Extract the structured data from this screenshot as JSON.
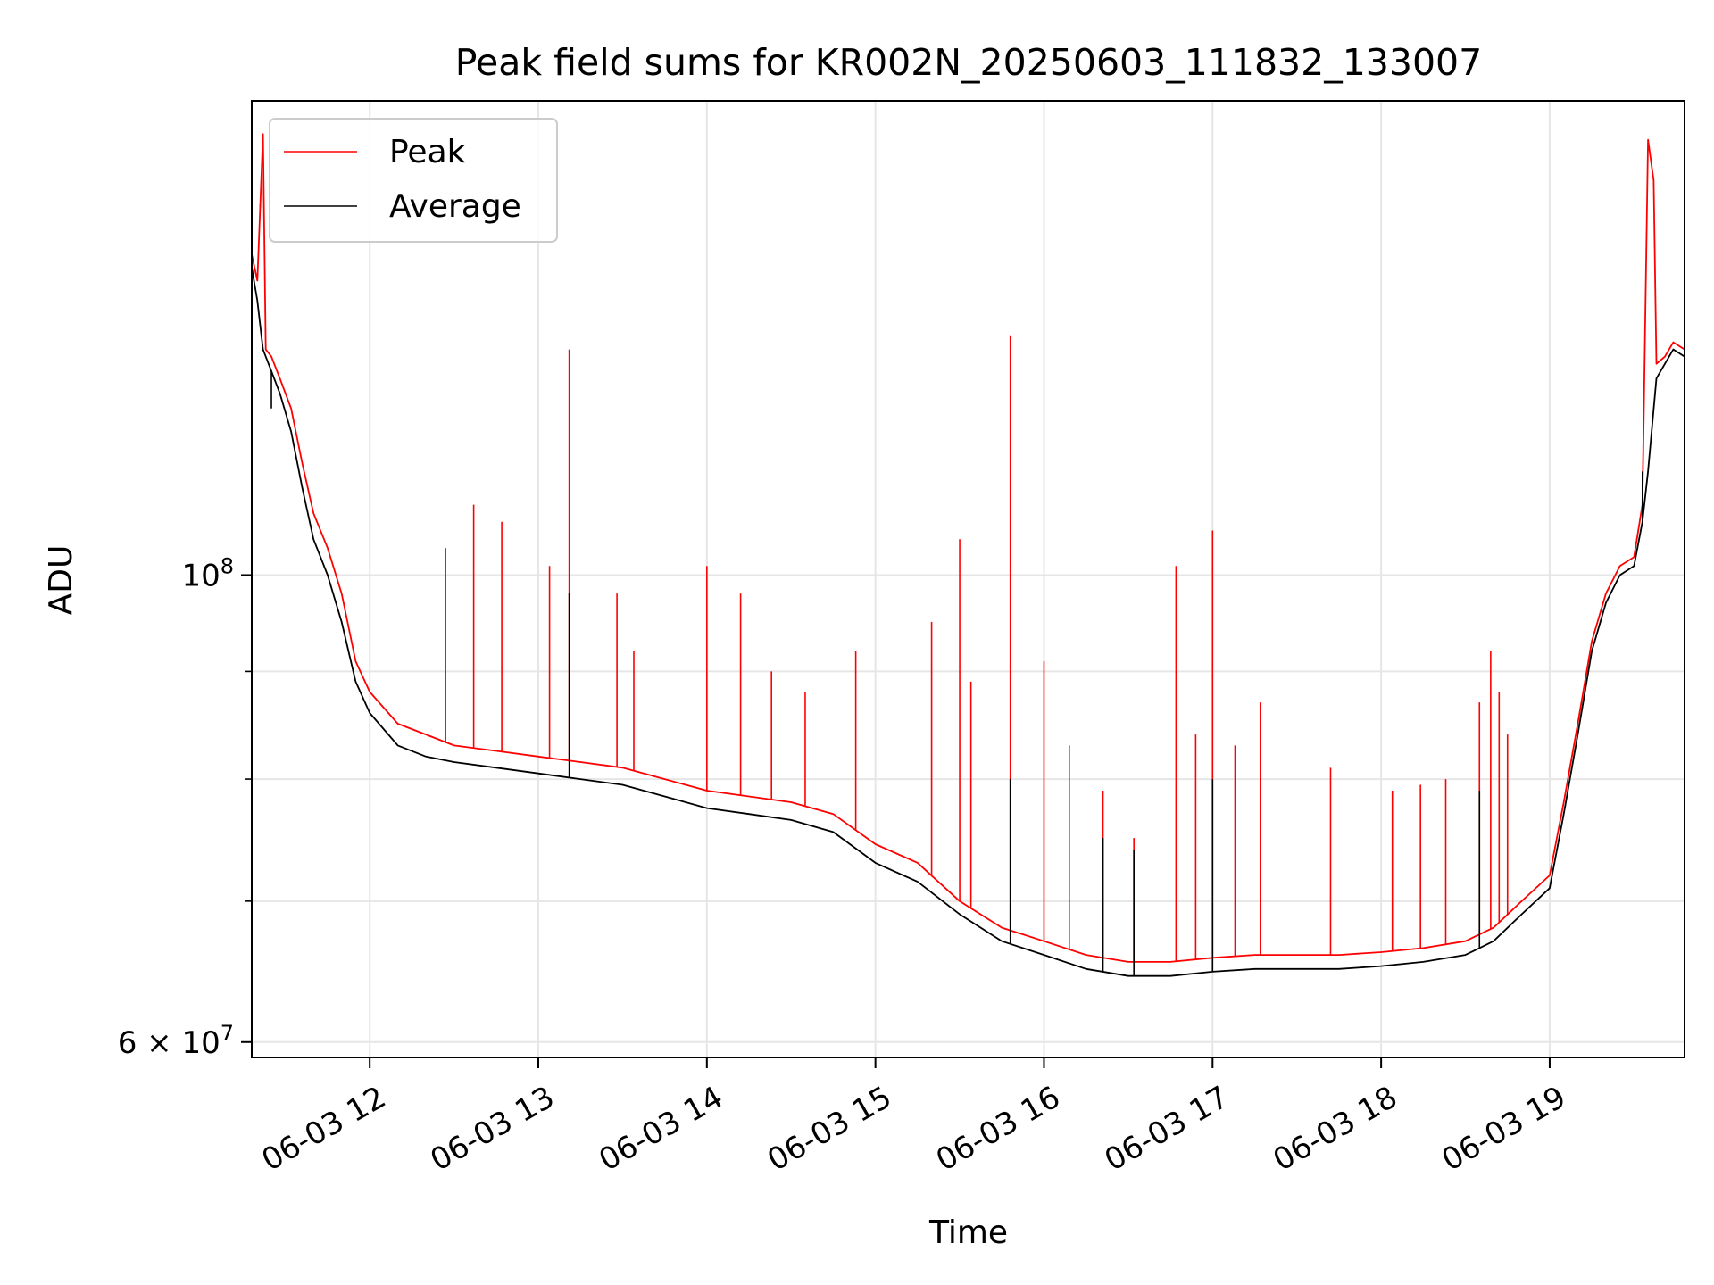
{
  "chart_data": {
    "type": "line",
    "title": "Peak field sums for KR002N_20250603_111832_133007",
    "xlabel": "Time",
    "ylabel": "ADU",
    "y_scale": "log",
    "grid": true,
    "legend_placement": "top-left",
    "x_range": [
      "2025-06-03 11:18",
      "2025-06-03 19:48"
    ],
    "y_range": [
      59000000,
      168000000
    ],
    "x_ticks": [
      {
        "value": "2025-06-03 12:00",
        "label": "06-03 12"
      },
      {
        "value": "2025-06-03 13:00",
        "label": "06-03 13"
      },
      {
        "value": "2025-06-03 14:00",
        "label": "06-03 14"
      },
      {
        "value": "2025-06-03 15:00",
        "label": "06-03 15"
      },
      {
        "value": "2025-06-03 16:00",
        "label": "06-03 16"
      },
      {
        "value": "2025-06-03 17:00",
        "label": "06-03 17"
      },
      {
        "value": "2025-06-03 18:00",
        "label": "06-03 18"
      },
      {
        "value": "2025-06-03 19:00",
        "label": "06-03 19"
      }
    ],
    "y_major_ticks": [
      {
        "value": 60000000,
        "label": "6 × 10^7",
        "mantissa": "6",
        "exponent": "7"
      },
      {
        "value": 100000000,
        "label": "10^8",
        "mantissa": "",
        "exponent": "8"
      }
    ],
    "y_minor_ticks": [
      70000000,
      80000000,
      90000000
    ],
    "series": [
      {
        "name": "Peak",
        "color": "#ff0000",
        "points": [
          [
            "2025-06-03 11:18",
            142000000
          ],
          [
            "2025-06-03 11:20",
            138000000
          ],
          [
            "2025-06-03 11:22",
            162000000
          ],
          [
            "2025-06-03 11:23",
            128000000
          ],
          [
            "2025-06-03 11:25",
            127000000
          ],
          [
            "2025-06-03 11:28",
            124000000
          ],
          [
            "2025-06-03 11:32",
            120000000
          ],
          [
            "2025-06-03 11:36",
            113000000
          ],
          [
            "2025-06-03 11:40",
            107000000
          ],
          [
            "2025-06-03 11:45",
            103000000
          ],
          [
            "2025-06-03 11:50",
            98000000
          ],
          [
            "2025-06-03 11:55",
            91000000
          ],
          [
            "2025-06-03 12:00",
            88000000
          ],
          [
            "2025-06-03 12:10",
            85000000
          ],
          [
            "2025-06-03 12:20",
            84000000
          ],
          [
            "2025-06-03 12:30",
            83000000
          ],
          [
            "2025-06-03 12:45",
            82500000
          ],
          [
            "2025-06-03 13:00",
            82000000
          ],
          [
            "2025-06-03 13:15",
            81500000
          ],
          [
            "2025-06-03 13:30",
            81000000
          ],
          [
            "2025-06-03 13:45",
            80000000
          ],
          [
            "2025-06-03 14:00",
            79000000
          ],
          [
            "2025-06-03 14:15",
            78500000
          ],
          [
            "2025-06-03 14:30",
            78000000
          ],
          [
            "2025-06-03 14:45",
            77000000
          ],
          [
            "2025-06-03 15:00",
            74500000
          ],
          [
            "2025-06-03 15:15",
            73000000
          ],
          [
            "2025-06-03 15:30",
            70000000
          ],
          [
            "2025-06-03 15:45",
            68000000
          ],
          [
            "2025-06-03 16:00",
            67000000
          ],
          [
            "2025-06-03 16:15",
            66000000
          ],
          [
            "2025-06-03 16:30",
            65500000
          ],
          [
            "2025-06-03 16:45",
            65500000
          ],
          [
            "2025-06-03 17:00",
            65800000
          ],
          [
            "2025-06-03 17:15",
            66000000
          ],
          [
            "2025-06-03 17:30",
            66000000
          ],
          [
            "2025-06-03 17:45",
            66000000
          ],
          [
            "2025-06-03 18:00",
            66200000
          ],
          [
            "2025-06-03 18:15",
            66500000
          ],
          [
            "2025-06-03 18:30",
            67000000
          ],
          [
            "2025-06-03 18:40",
            68000000
          ],
          [
            "2025-06-03 18:50",
            70000000
          ],
          [
            "2025-06-03 19:00",
            72000000
          ],
          [
            "2025-06-03 19:05",
            78000000
          ],
          [
            "2025-06-03 19:10",
            85000000
          ],
          [
            "2025-06-03 19:15",
            93000000
          ],
          [
            "2025-06-03 19:20",
            98000000
          ],
          [
            "2025-06-03 19:25",
            101000000
          ],
          [
            "2025-06-03 19:30",
            102000000
          ],
          [
            "2025-06-03 19:33",
            108000000
          ],
          [
            "2025-06-03 19:35",
            161000000
          ],
          [
            "2025-06-03 19:37",
            154000000
          ],
          [
            "2025-06-03 19:38",
            126000000
          ],
          [
            "2025-06-03 19:41",
            127000000
          ],
          [
            "2025-06-03 19:44",
            129000000
          ],
          [
            "2025-06-03 19:48",
            128000000
          ]
        ]
      },
      {
        "name": "Average",
        "color": "#000000",
        "points": [
          [
            "2025-06-03 11:18",
            140000000
          ],
          [
            "2025-06-03 11:20",
            135000000
          ],
          [
            "2025-06-03 11:22",
            128000000
          ],
          [
            "2025-06-03 11:25",
            125000000
          ],
          [
            "2025-06-03 11:28",
            122000000
          ],
          [
            "2025-06-03 11:32",
            117000000
          ],
          [
            "2025-06-03 11:36",
            110000000
          ],
          [
            "2025-06-03 11:40",
            104000000
          ],
          [
            "2025-06-03 11:45",
            100000000
          ],
          [
            "2025-06-03 11:50",
            95000000
          ],
          [
            "2025-06-03 11:55",
            89000000
          ],
          [
            "2025-06-03 12:00",
            86000000
          ],
          [
            "2025-06-03 12:10",
            83000000
          ],
          [
            "2025-06-03 12:20",
            82000000
          ],
          [
            "2025-06-03 12:30",
            81500000
          ],
          [
            "2025-06-03 12:45",
            81000000
          ],
          [
            "2025-06-03 13:00",
            80500000
          ],
          [
            "2025-06-03 13:15",
            80000000
          ],
          [
            "2025-06-03 13:30",
            79500000
          ],
          [
            "2025-06-03 13:45",
            78500000
          ],
          [
            "2025-06-03 14:00",
            77500000
          ],
          [
            "2025-06-03 14:15",
            77000000
          ],
          [
            "2025-06-03 14:30",
            76500000
          ],
          [
            "2025-06-03 14:45",
            75500000
          ],
          [
            "2025-06-03 15:00",
            73000000
          ],
          [
            "2025-06-03 15:15",
            71500000
          ],
          [
            "2025-06-03 15:30",
            69000000
          ],
          [
            "2025-06-03 15:45",
            67000000
          ],
          [
            "2025-06-03 16:00",
            66000000
          ],
          [
            "2025-06-03 16:15",
            65000000
          ],
          [
            "2025-06-03 16:30",
            64500000
          ],
          [
            "2025-06-03 16:45",
            64500000
          ],
          [
            "2025-06-03 17:00",
            64800000
          ],
          [
            "2025-06-03 17:15",
            65000000
          ],
          [
            "2025-06-03 17:30",
            65000000
          ],
          [
            "2025-06-03 17:45",
            65000000
          ],
          [
            "2025-06-03 18:00",
            65200000
          ],
          [
            "2025-06-03 18:15",
            65500000
          ],
          [
            "2025-06-03 18:30",
            66000000
          ],
          [
            "2025-06-03 18:40",
            67000000
          ],
          [
            "2025-06-03 18:50",
            69000000
          ],
          [
            "2025-06-03 19:00",
            71000000
          ],
          [
            "2025-06-03 19:05",
            77000000
          ],
          [
            "2025-06-03 19:10",
            84000000
          ],
          [
            "2025-06-03 19:15",
            92000000
          ],
          [
            "2025-06-03 19:20",
            97000000
          ],
          [
            "2025-06-03 19:25",
            100000000
          ],
          [
            "2025-06-03 19:30",
            101000000
          ],
          [
            "2025-06-03 19:33",
            106000000
          ],
          [
            "2025-06-03 19:35",
            112000000
          ],
          [
            "2025-06-03 19:38",
            124000000
          ],
          [
            "2025-06-03 19:41",
            126000000
          ],
          [
            "2025-06-03 19:44",
            128000000
          ],
          [
            "2025-06-03 19:48",
            127000000
          ]
        ]
      }
    ],
    "peak_spikes": [
      [
        "2025-06-03 11:21",
        150000000
      ],
      [
        "2025-06-03 12:27",
        103000000
      ],
      [
        "2025-06-03 12:37",
        108000000
      ],
      [
        "2025-06-03 12:47",
        106000000
      ],
      [
        "2025-06-03 13:04",
        101000000
      ],
      [
        "2025-06-03 13:11",
        128000000
      ],
      [
        "2025-06-03 13:28",
        98000000
      ],
      [
        "2025-06-03 13:34",
        92000000
      ],
      [
        "2025-06-03 14:00",
        101000000
      ],
      [
        "2025-06-03 14:12",
        98000000
      ],
      [
        "2025-06-03 14:23",
        90000000
      ],
      [
        "2025-06-03 14:35",
        88000000
      ],
      [
        "2025-06-03 14:53",
        92000000
      ],
      [
        "2025-06-03 15:20",
        95000000
      ],
      [
        "2025-06-03 15:30",
        104000000
      ],
      [
        "2025-06-03 15:34",
        89000000
      ],
      [
        "2025-06-03 15:48",
        130000000
      ],
      [
        "2025-06-03 16:00",
        91000000
      ],
      [
        "2025-06-03 16:09",
        83000000
      ],
      [
        "2025-06-03 16:21",
        79000000
      ],
      [
        "2025-06-03 16:32",
        75000000
      ],
      [
        "2025-06-03 16:47",
        101000000
      ],
      [
        "2025-06-03 16:54",
        84000000
      ],
      [
        "2025-06-03 17:00",
        105000000
      ],
      [
        "2025-06-03 17:08",
        83000000
      ],
      [
        "2025-06-03 17:17",
        87000000
      ],
      [
        "2025-06-03 17:42",
        81000000
      ],
      [
        "2025-06-03 18:04",
        79000000
      ],
      [
        "2025-06-03 18:14",
        79500000
      ],
      [
        "2025-06-03 18:23",
        80000000
      ],
      [
        "2025-06-03 18:35",
        87000000
      ],
      [
        "2025-06-03 18:39",
        92000000
      ],
      [
        "2025-06-03 18:42",
        88000000
      ],
      [
        "2025-06-03 18:45",
        84000000
      ]
    ],
    "average_spikes": [
      [
        "2025-06-03 11:25",
        120000000
      ],
      [
        "2025-06-03 13:11",
        98000000
      ],
      [
        "2025-06-03 15:48",
        80000000
      ],
      [
        "2025-06-03 16:21",
        75000000
      ],
      [
        "2025-06-03 16:32",
        74000000
      ],
      [
        "2025-06-03 17:00",
        80000000
      ],
      [
        "2025-06-03 18:35",
        79000000
      ],
      [
        "2025-06-03 19:33",
        112000000
      ]
    ]
  }
}
